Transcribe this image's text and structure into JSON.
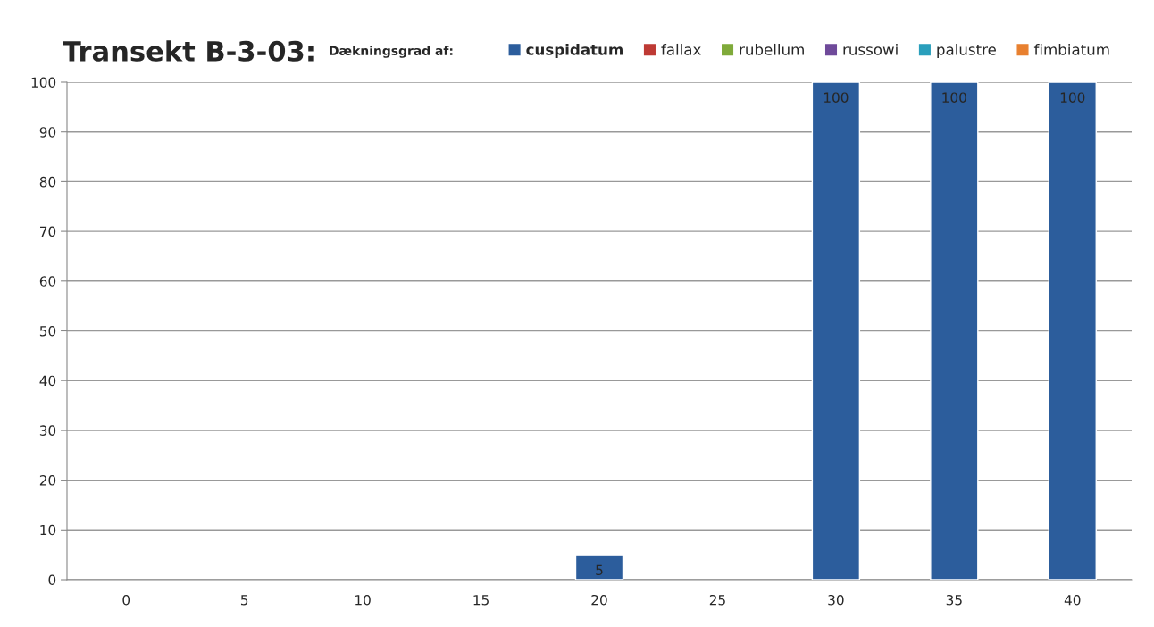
{
  "chart_data": {
    "type": "bar",
    "stacked": true,
    "title": "Transekt B-3-03:",
    "legend_title": "Dækningsgrad af:",
    "legend": "top right",
    "categories": [
      "0",
      "5",
      "10",
      "15",
      "20",
      "25",
      "30",
      "35",
      "40"
    ],
    "series": [
      {
        "name": "cuspidatum",
        "color": "#2c5d9c",
        "values": [
          null,
          null,
          null,
          null,
          5,
          null,
          100,
          100,
          100
        ],
        "value_labels": [
          null,
          null,
          null,
          null,
          "5",
          null,
          "100",
          "100",
          "100"
        ]
      },
      {
        "name": "fallax",
        "color": "#be3a34",
        "values": [
          null,
          null,
          null,
          null,
          null,
          null,
          null,
          null,
          null
        ]
      },
      {
        "name": "rubellum",
        "color": "#7faa3a",
        "values": [
          null,
          null,
          null,
          null,
          null,
          null,
          null,
          null,
          null
        ]
      },
      {
        "name": "russowi",
        "color": "#6f4a9a",
        "values": [
          null,
          null,
          null,
          null,
          null,
          null,
          null,
          null,
          null
        ]
      },
      {
        "name": "palustre",
        "color": "#2a9fbc",
        "values": [
          null,
          null,
          null,
          null,
          null,
          null,
          null,
          null,
          null
        ]
      },
      {
        "name": "fimbiatum",
        "color": "#e8802f",
        "values": [
          null,
          null,
          null,
          null,
          null,
          null,
          null,
          null,
          null
        ]
      }
    ],
    "ylim": [
      0,
      100
    ],
    "yticks": [
      0,
      10,
      20,
      30,
      40,
      50,
      60,
      70,
      80,
      90,
      100
    ],
    "grid": "y"
  }
}
